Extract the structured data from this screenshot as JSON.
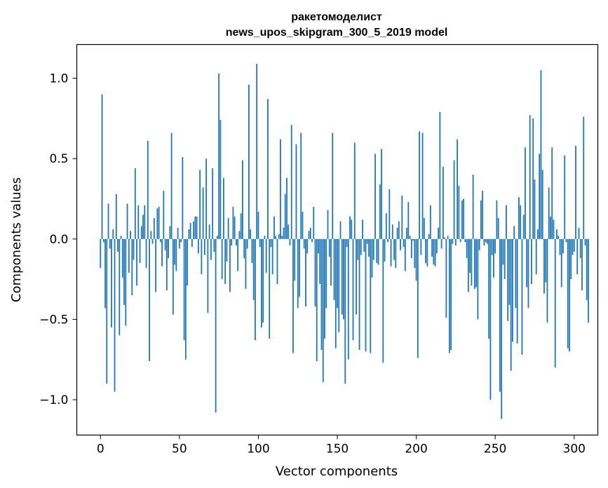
{
  "chart_data": {
    "type": "bar",
    "title": "ракетомоделист",
    "subtitle": "news_upos_skipgram_300_5_2019 model",
    "xlabel": "Vector components",
    "ylabel": "Components values",
    "xlim": [
      -15,
      315
    ],
    "ylim": [
      -1.22,
      1.21
    ],
    "xticks": [
      0,
      50,
      100,
      150,
      200,
      250,
      300
    ],
    "xtick_labels": [
      "0",
      "50",
      "100",
      "150",
      "200",
      "250",
      "300"
    ],
    "yticks": [
      -1.0,
      -0.5,
      0.0,
      0.5,
      1.0
    ],
    "ytick_labels": [
      "−1.0",
      "−0.5",
      "0.0",
      "0.5",
      "1.0"
    ],
    "grid": false,
    "bar_color": "#1f77b4",
    "series": [
      {
        "values": [
          -0.18,
          0.9,
          -0.02,
          -0.43,
          -0.9,
          0.22,
          -0.06,
          -0.55,
          0.06,
          -0.95,
          0.28,
          -0.08,
          -0.6,
          0.02,
          -0.24,
          -0.41,
          -0.54,
          0.22,
          -0.21,
          0.05,
          -0.35,
          -0.13,
          0.44,
          -0.29,
          0.21,
          -0.15,
          0.08,
          0.15,
          0.21,
          -0.18,
          0.61,
          -0.76,
          0.05,
          -0.03,
          0.13,
          -0.33,
          0.19,
          0.2,
          -0.02,
          -0.17,
          0.3,
          -0.07,
          -0.32,
          -0.12,
          0.08,
          0.66,
          -0.47,
          -0.16,
          -0.2,
          0.07,
          -0.06,
          -0.02,
          0.51,
          -0.63,
          -0.75,
          -0.29,
          0.06,
          0.1,
          -0.05,
          0.11,
          0.14,
          0.14,
          -0.09,
          0.43,
          -0.22,
          0.32,
          -0.1,
          0.5,
          -0.46,
          0.09,
          -0.13,
          0.44,
          -0.08,
          -1.08,
          0.02,
          1.03,
          0.74,
          -0.25,
          0.38,
          -0.28,
          -0.14,
          0.13,
          -0.33,
          -0.04,
          0.2,
          0.14,
          -0.04,
          -0.2,
          0.05,
          0.16,
          0.49,
          -0.12,
          -0.31,
          -0.06,
          0.96,
          0.06,
          -0.15,
          -0.38,
          -0.63,
          1.09,
          0.17,
          -0.05,
          -0.55,
          -0.52,
          0.02,
          -0.21,
          0.87,
          -0.62,
          -0.05,
          -0.22,
          0.14,
          0.02,
          -0.28,
          0.03,
          0.62,
          0.02,
          0.07,
          0.28,
          0.38,
          0.09,
          -0.04,
          0.71,
          -0.71,
          -0.26,
          0.59,
          -0.43,
          -0.36,
          0.66,
          0.17,
          -0.06,
          -0.42,
          -0.09,
          0.05,
          0.07,
          -0.02,
          0.2,
          -0.42,
          -0.76,
          -0.09,
          -0.28,
          -0.69,
          -0.89,
          -0.62,
          -0.43,
          0.18,
          -0.11,
          -0.29,
          0.66,
          -0.38,
          -0.68,
          -0.43,
          -0.58,
          0.11,
          -0.47,
          -0.5,
          -0.9,
          -0.05,
          -0.75,
          0.14,
          0.12,
          -0.63,
          0.6,
          -0.47,
          -0.13,
          -0.69,
          -0.1,
          0.12,
          -0.08,
          -0.7,
          -0.03,
          -0.11,
          -0.71,
          -0.24,
          -0.13,
          0.53,
          -0.15,
          -0.16,
          0.34,
          0.56,
          -0.77,
          -0.14,
          0.16,
          -0.02,
          0.31,
          -0.17,
          0.09,
          -0.13,
          -0.18,
          0.07,
          0.11,
          -0.07,
          0.27,
          -0.05,
          -0.2,
          0.07,
          0.23,
          0.02,
          -0.12,
          -0.01,
          -0.18,
          -0.26,
          -0.74,
          0.67,
          -0.1,
          0.66,
          0.13,
          -0.15,
          -0.17,
          0.03,
          0.21,
          -0.11,
          -0.16,
          -0.17,
          -0.09,
          0.07,
          0.79,
          -0.06,
          0.45,
          0.01,
          -0.49,
          0.02,
          -0.71,
          -0.69,
          -0.03,
          0.49,
          -0.04,
          0.62,
          0.33,
          -0.02,
          0.24,
          0.25,
          -0.02,
          -0.12,
          -0.33,
          -0.21,
          -0.29,
          0.4,
          -0.31,
          -0.3,
          -0.5,
          -0.07,
          0.24,
          0.3,
          -0.04,
          -0.02,
          -0.03,
          -0.62,
          -1.0,
          -0.1,
          -0.24,
          -0.09,
          0.24,
          0.13,
          -0.95,
          -1.12,
          -0.16,
          -0.25,
          0.21,
          -0.51,
          -0.41,
          -0.82,
          -0.64,
          0.08,
          -0.43,
          -0.65,
          0.26,
          0.21,
          -0.72,
          0.15,
          0.57,
          -0.3,
          -0.43,
          0.77,
          -0.28,
          0.75,
          0.37,
          -0.22,
          0.06,
          0.53,
          1.05,
          0.43,
          -0.34,
          -0.27,
          -0.52,
          0.32,
          0.14,
          0.57,
          0.12,
          -0.8,
          0.06,
          0.02,
          -0.1,
          -0.3,
          -0.09,
          0.52,
          -0.02,
          -0.68,
          -0.7,
          -0.25,
          -0.1,
          -0.08,
          0.58,
          -0.22,
          0.07,
          -0.12,
          -0.32,
          0.76,
          -0.04,
          -0.38,
          -0.52
        ]
      }
    ]
  }
}
